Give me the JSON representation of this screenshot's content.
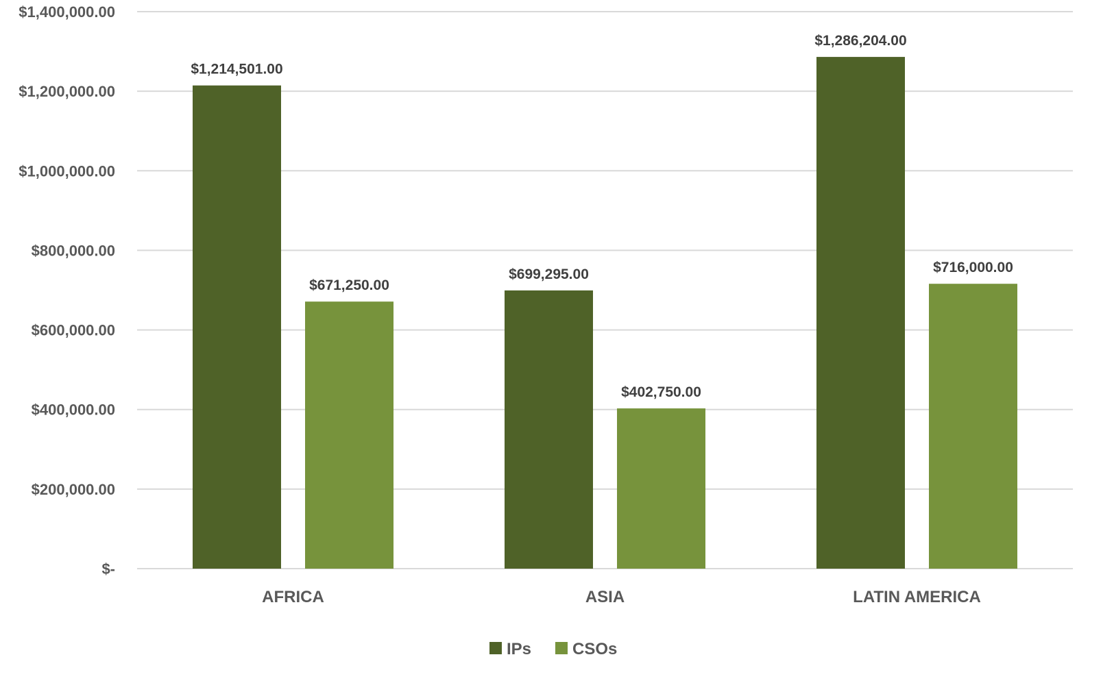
{
  "chart_data": {
    "type": "bar",
    "categories": [
      "AFRICA",
      "ASIA",
      "LATIN AMERICA"
    ],
    "series": [
      {
        "name": "IPs",
        "color": "#4f6228",
        "values": [
          1214501,
          699295,
          1286204
        ],
        "labels": [
          "$1,214,501.00",
          "$699,295.00",
          "$1,286,204.00"
        ]
      },
      {
        "name": "CSOs",
        "color": "#77933c",
        "values": [
          671250,
          402750,
          716000
        ],
        "labels": [
          "$671,250.00",
          "$402,750.00",
          "$716,000.00"
        ]
      }
    ],
    "ylim": [
      0,
      1400000
    ],
    "yticks": [
      0,
      200000,
      400000,
      600000,
      800000,
      1000000,
      1200000,
      1400000
    ],
    "ytick_labels": [
      "$-",
      "$200,000.00",
      "$400,000.00",
      "$600,000.00",
      "$800,000.00",
      "$1,000,000.00",
      "$1,200,000.00",
      "$1,400,000.00"
    ],
    "grid": true,
    "gridline_color": "#d9d9d9",
    "legend_position": "bottom",
    "title": "",
    "xlabel": "",
    "ylabel": ""
  }
}
